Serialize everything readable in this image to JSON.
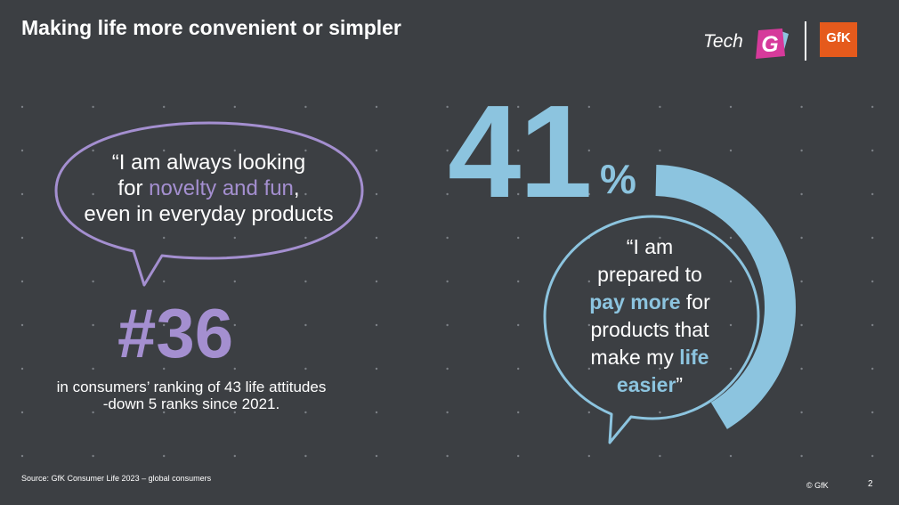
{
  "slide": {
    "title": "Making life more convenient or simpler",
    "page_number": "2",
    "source": "Source: GfK Consumer Life 2023 – global consumers",
    "copyright": "© GfK"
  },
  "logos": {
    "tech_word": "Tech",
    "g_letter": "G",
    "gfk_text": "GfK"
  },
  "left_panel": {
    "quote_parts": [
      "“I am always looking",
      "for ",
      "novelty and fun",
      ",",
      "even in everyday products"
    ],
    "rank_number": "#36",
    "rank_line1": "in consumers’ ranking of 43 life attitudes",
    "rank_line2": "-down 5 ranks since 2021."
  },
  "right_panel": {
    "big_number": "41",
    "big_unit": "%",
    "share_value": 41,
    "quote_parts": [
      "“I am",
      "prepared to",
      "pay more",
      " for",
      "products that",
      "make my ",
      "life",
      "easier",
      "”"
    ]
  },
  "colors": {
    "background": "#3c3f43",
    "accent_purple": "#a48fd0",
    "accent_blue": "#8cc4df",
    "gfk_orange": "#e55a1c",
    "techg_magenta": "#d63a9b"
  }
}
